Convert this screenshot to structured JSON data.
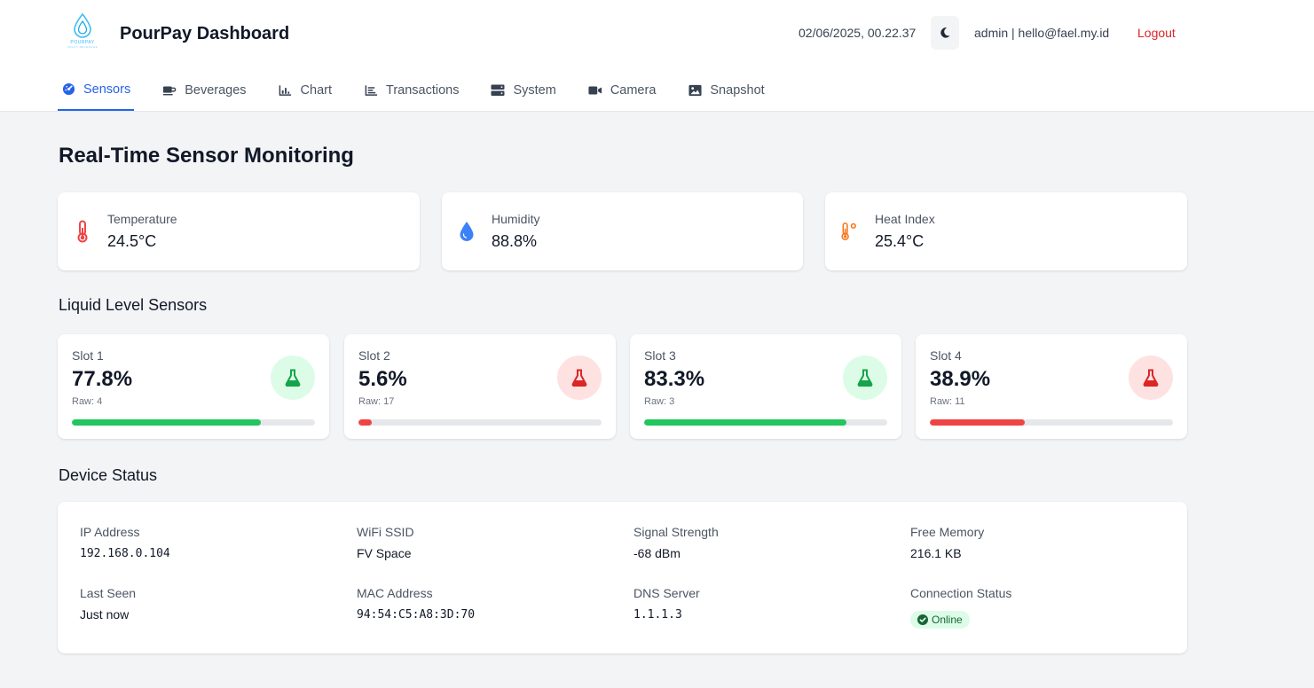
{
  "header": {
    "logo_text": "POURPAY",
    "logo_subtext": "CRAFT BEVERAGE",
    "title": "PourPay Dashboard",
    "datetime": "02/06/2025, 00.22.37",
    "user": "admin | hello@fael.my.id",
    "logout_label": "Logout",
    "theme_icon": "moon-icon"
  },
  "tabs": [
    {
      "label": "Sensors",
      "icon": "gauge-icon",
      "active": true
    },
    {
      "label": "Beverages",
      "icon": "mug-icon",
      "active": false
    },
    {
      "label": "Chart",
      "icon": "chart-icon",
      "active": false
    },
    {
      "label": "Transactions",
      "icon": "list-chart-icon",
      "active": false
    },
    {
      "label": "System",
      "icon": "server-icon",
      "active": false
    },
    {
      "label": "Camera",
      "icon": "video-icon",
      "active": false
    },
    {
      "label": "Snapshot",
      "icon": "image-icon",
      "active": false
    }
  ],
  "page_title": "Real-Time Sensor Monitoring",
  "environment": [
    {
      "label": "Temperature",
      "value": "24.5°C",
      "icon": "thermometer-icon",
      "color": "#ef4444"
    },
    {
      "label": "Humidity",
      "value": "88.8%",
      "icon": "droplet-icon",
      "color": "#3b82f6"
    },
    {
      "label": "Heat Index",
      "value": "25.4°C",
      "icon": "temperature-high-icon",
      "color": "#f97316"
    }
  ],
  "liquid_section_title": "Liquid Level Sensors",
  "slots": [
    {
      "name": "Slot 1",
      "value": "77.8%",
      "raw": "Raw: 4",
      "level": 0.778,
      "status": "ok",
      "color": "#22c55e",
      "badge_bg": "#dcfce7",
      "icon_color": "#16a34a"
    },
    {
      "name": "Slot 2",
      "value": "5.6%",
      "raw": "Raw: 17",
      "level": 0.056,
      "status": "low",
      "color": "#ef4444",
      "badge_bg": "#fee2e2",
      "icon_color": "#dc2626"
    },
    {
      "name": "Slot 3",
      "value": "83.3%",
      "raw": "Raw: 3",
      "level": 0.833,
      "status": "ok",
      "color": "#22c55e",
      "badge_bg": "#dcfce7",
      "icon_color": "#16a34a"
    },
    {
      "name": "Slot 4",
      "value": "38.9%",
      "raw": "Raw: 11",
      "level": 0.389,
      "status": "low",
      "color": "#ef4444",
      "badge_bg": "#fee2e2",
      "icon_color": "#dc2626"
    }
  ],
  "device_section_title": "Device Status",
  "device": {
    "ip_label": "IP Address",
    "ip": "192.168.0.104",
    "ssid_label": "WiFi SSID",
    "ssid": "FV Space",
    "signal_label": "Signal Strength",
    "signal": "-68 dBm",
    "memory_label": "Free Memory",
    "memory": "216.1 KB",
    "last_seen_label": "Last Seen",
    "last_seen": "Just now",
    "mac_label": "MAC Address",
    "mac": "94:54:C5:A8:3D:70",
    "dns_label": "DNS Server",
    "dns": "1.1.1.3",
    "connection_label": "Connection Status",
    "connection": "Online"
  },
  "colors": {
    "accent": "#2563eb",
    "danger": "#dc2626",
    "success": "#22c55e"
  }
}
